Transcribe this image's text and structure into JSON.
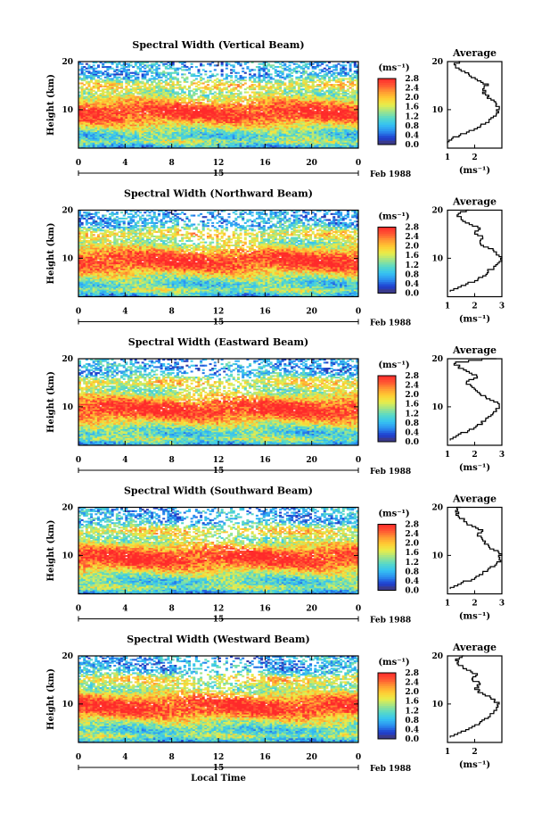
{
  "chart_data": {
    "type": "heatmap",
    "xlabel": "Local Time",
    "date_label": "15",
    "date_suffix": "Feb 1988",
    "x_ticks": [
      "0",
      "4",
      "8",
      "12",
      "16",
      "20",
      "0"
    ],
    "x_range_hours": [
      0,
      24
    ],
    "ylabel": "Height (km)",
    "y_ticks": [
      "20",
      "10"
    ],
    "y_range_km": [
      2,
      20
    ],
    "colorbar": {
      "unit": "(ms⁻¹)",
      "ticks": [
        "2.8",
        "2.4",
        "2.0",
        "1.6",
        "1.2",
        "0.8",
        "0.4",
        "0.0"
      ],
      "range": [
        0.0,
        2.8
      ],
      "colors": [
        "#3a3a8c",
        "#1f3fcf",
        "#2b8ff0",
        "#36c3f2",
        "#57d9c8",
        "#9fe48a",
        "#e8ee4a",
        "#ffcc33",
        "#ff9933",
        "#ff5533",
        "#ff2a2a"
      ]
    },
    "panels": [
      {
        "title": "Spectral Width (Vertical Beam)",
        "average": {
          "title": "Average",
          "x_ticks": [
            "1",
            "2"
          ],
          "x_range": [
            1,
            3
          ],
          "xlabel": "(ms⁻¹)",
          "profile": [
            {
              "h": 3.0,
              "v": 1.0
            },
            {
              "h": 4.0,
              "v": 1.2
            },
            {
              "h": 5.0,
              "v": 1.7
            },
            {
              "h": 6.0,
              "v": 2.1
            },
            {
              "h": 7.0,
              "v": 2.4
            },
            {
              "h": 8.0,
              "v": 2.6
            },
            {
              "h": 9.0,
              "v": 2.8
            },
            {
              "h": 10.0,
              "v": 2.9
            },
            {
              "h": 11.0,
              "v": 2.8
            },
            {
              "h": 12.0,
              "v": 2.6
            },
            {
              "h": 13.0,
              "v": 2.4
            },
            {
              "h": 14.0,
              "v": 2.3
            },
            {
              "h": 15.0,
              "v": 2.5
            },
            {
              "h": 16.0,
              "v": 2.1
            },
            {
              "h": 17.0,
              "v": 1.8
            },
            {
              "h": 18.0,
              "v": 1.5
            },
            {
              "h": 19.0,
              "v": 1.3
            },
            {
              "h": 20.0,
              "v": 1.4
            }
          ]
        }
      },
      {
        "title": "Spectral Width (Northward Beam)",
        "average": {
          "title": "Average",
          "x_ticks": [
            "1",
            "2",
            "3"
          ],
          "x_range": [
            1,
            3
          ],
          "xlabel": "(ms⁻¹)",
          "profile": [
            {
              "h": 3.0,
              "v": 1.1
            },
            {
              "h": 4.0,
              "v": 1.5
            },
            {
              "h": 5.0,
              "v": 2.0
            },
            {
              "h": 6.0,
              "v": 2.3
            },
            {
              "h": 7.0,
              "v": 2.5
            },
            {
              "h": 8.0,
              "v": 2.7
            },
            {
              "h": 9.0,
              "v": 2.9
            },
            {
              "h": 10.0,
              "v": 3.0
            },
            {
              "h": 11.0,
              "v": 2.8
            },
            {
              "h": 12.0,
              "v": 2.5
            },
            {
              "h": 13.0,
              "v": 2.2
            },
            {
              "h": 14.0,
              "v": 2.3
            },
            {
              "h": 15.0,
              "v": 2.0
            },
            {
              "h": 16.0,
              "v": 2.2
            },
            {
              "h": 17.0,
              "v": 1.8
            },
            {
              "h": 18.0,
              "v": 1.5
            },
            {
              "h": 19.0,
              "v": 1.4
            },
            {
              "h": 20.0,
              "v": 1.8
            }
          ]
        }
      },
      {
        "title": "Spectral Width (Eastward Beam)",
        "average": {
          "title": "Average",
          "x_ticks": [
            "1",
            "2",
            "3"
          ],
          "x_range": [
            1,
            3
          ],
          "xlabel": "(ms⁻¹)",
          "profile": [
            {
              "h": 3.0,
              "v": 1.1
            },
            {
              "h": 4.0,
              "v": 1.4
            },
            {
              "h": 5.0,
              "v": 1.8
            },
            {
              "h": 6.0,
              "v": 2.1
            },
            {
              "h": 7.0,
              "v": 2.4
            },
            {
              "h": 8.0,
              "v": 2.6
            },
            {
              "h": 9.0,
              "v": 2.8
            },
            {
              "h": 10.0,
              "v": 2.9
            },
            {
              "h": 11.0,
              "v": 2.7
            },
            {
              "h": 12.0,
              "v": 2.4
            },
            {
              "h": 13.0,
              "v": 2.1
            },
            {
              "h": 14.0,
              "v": 1.9
            },
            {
              "h": 15.0,
              "v": 1.7
            },
            {
              "h": 16.0,
              "v": 2.1
            },
            {
              "h": 17.0,
              "v": 1.8
            },
            {
              "h": 18.0,
              "v": 1.4
            },
            {
              "h": 19.0,
              "v": 1.3
            },
            {
              "h": 20.0,
              "v": 2.8
            }
          ]
        }
      },
      {
        "title": "Spectral Width (Southward Beam)",
        "average": {
          "title": "Average",
          "x_ticks": [
            "1",
            "2",
            "3"
          ],
          "x_range": [
            1,
            3
          ],
          "xlabel": "(ms⁻¹)",
          "profile": [
            {
              "h": 3.0,
              "v": 1.1
            },
            {
              "h": 4.0,
              "v": 1.5
            },
            {
              "h": 5.0,
              "v": 2.0
            },
            {
              "h": 6.0,
              "v": 2.3
            },
            {
              "h": 7.0,
              "v": 2.5
            },
            {
              "h": 8.0,
              "v": 2.8
            },
            {
              "h": 9.0,
              "v": 2.9
            },
            {
              "h": 10.0,
              "v": 3.0
            },
            {
              "h": 11.0,
              "v": 2.7
            },
            {
              "h": 12.0,
              "v": 2.5
            },
            {
              "h": 13.0,
              "v": 2.3
            },
            {
              "h": 14.0,
              "v": 2.1
            },
            {
              "h": 15.0,
              "v": 2.3
            },
            {
              "h": 16.0,
              "v": 1.9
            },
            {
              "h": 17.0,
              "v": 1.6
            },
            {
              "h": 18.0,
              "v": 1.4
            },
            {
              "h": 19.0,
              "v": 1.3
            },
            {
              "h": 20.0,
              "v": 1.5
            }
          ]
        }
      },
      {
        "title": "Spectral Width (Westward Beam)",
        "average": {
          "title": "Average",
          "x_ticks": [
            "1",
            "2"
          ],
          "x_range": [
            1,
            3
          ],
          "xlabel": "(ms⁻¹)",
          "profile": [
            {
              "h": 3.0,
              "v": 1.1
            },
            {
              "h": 4.0,
              "v": 1.5
            },
            {
              "h": 5.0,
              "v": 1.9
            },
            {
              "h": 6.0,
              "v": 2.2
            },
            {
              "h": 7.0,
              "v": 2.5
            },
            {
              "h": 8.0,
              "v": 2.7
            },
            {
              "h": 9.0,
              "v": 2.8
            },
            {
              "h": 10.0,
              "v": 2.9
            },
            {
              "h": 11.0,
              "v": 2.6
            },
            {
              "h": 12.0,
              "v": 2.3
            },
            {
              "h": 13.0,
              "v": 2.0
            },
            {
              "h": 14.0,
              "v": 2.2
            },
            {
              "h": 15.0,
              "v": 1.9
            },
            {
              "h": 16.0,
              "v": 2.1
            },
            {
              "h": 17.0,
              "v": 1.7
            },
            {
              "h": 18.0,
              "v": 1.4
            },
            {
              "h": 19.0,
              "v": 1.3
            },
            {
              "h": 20.0,
              "v": 1.6
            }
          ]
        }
      }
    ]
  }
}
